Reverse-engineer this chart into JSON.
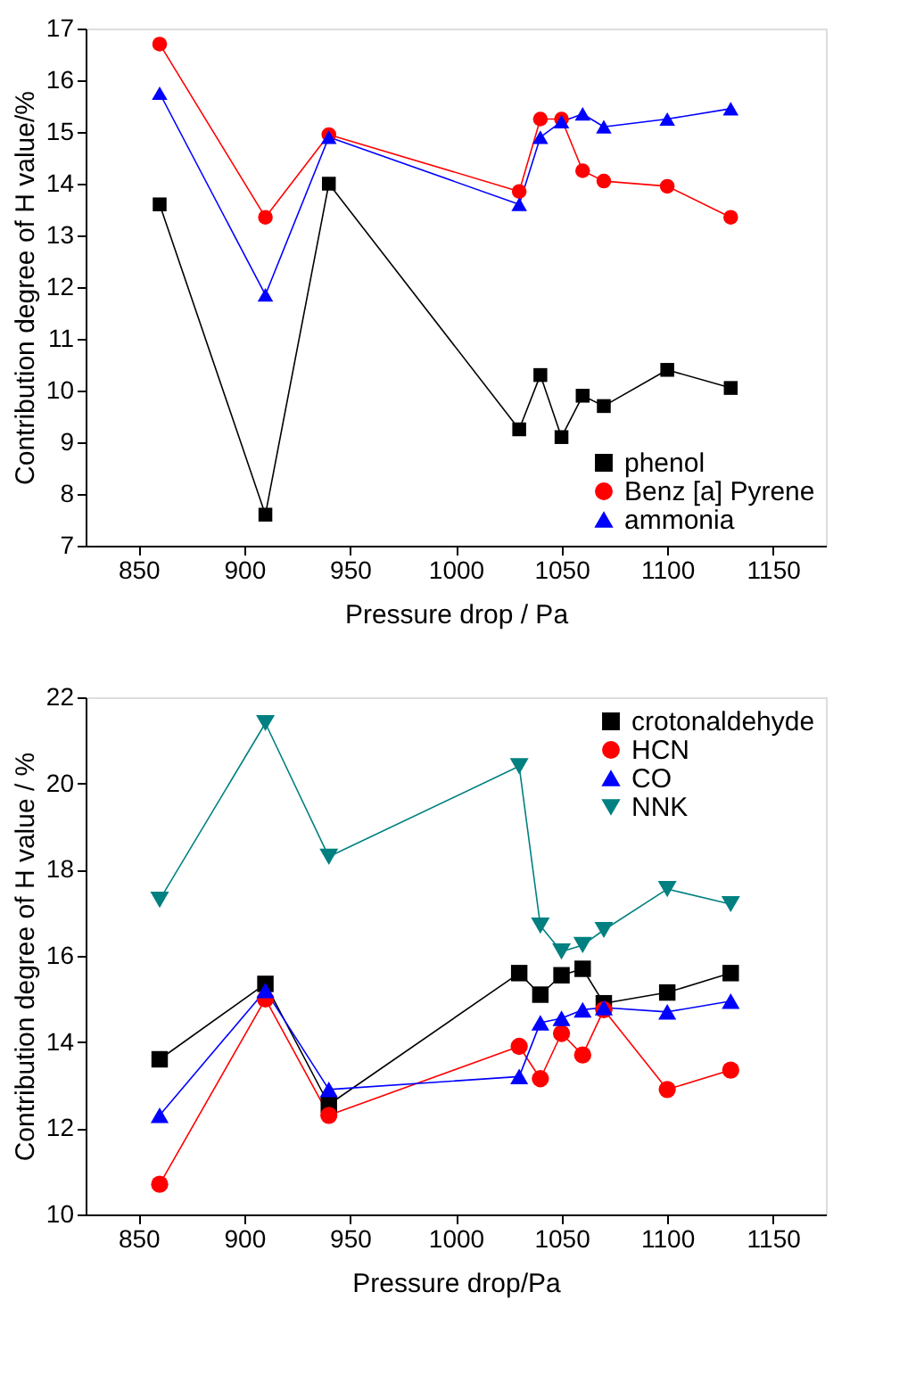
{
  "chart_data": [
    {
      "type": "line",
      "xlabel": "Pressure drop / Pa",
      "ylabel": "Contribution degree of H value/%",
      "x": [
        860,
        910,
        940,
        1030,
        1040,
        1050,
        1060,
        1070,
        1100,
        1130
      ],
      "xlim": [
        825,
        1175
      ],
      "xticks": [
        850,
        900,
        950,
        1000,
        1050,
        1100,
        1150
      ],
      "ylim": [
        7,
        17
      ],
      "yticks": [
        7,
        8,
        9,
        10,
        11,
        12,
        13,
        14,
        15,
        16,
        17
      ],
      "grid": false,
      "legend": "bottom right",
      "line_style": "solid",
      "series": [
        {
          "name": "phenol",
          "color": "#000000",
          "marker": "square",
          "values": [
            13.6,
            7.6,
            14.0,
            9.25,
            10.3,
            9.1,
            9.9,
            9.7,
            10.4,
            10.05
          ]
        },
        {
          "name": "Benz [a] Pyrene",
          "color": "#ff0000",
          "marker": "circle",
          "values": [
            16.7,
            13.35,
            14.95,
            13.85,
            15.25,
            15.25,
            14.25,
            14.05,
            13.95,
            13.35
          ]
        },
        {
          "name": "ammonia",
          "color": "#0000ff",
          "marker": "triangle",
          "values": [
            15.75,
            11.85,
            14.9,
            13.6,
            14.9,
            15.2,
            15.35,
            15.1,
            15.25,
            15.45
          ]
        }
      ]
    },
    {
      "type": "line",
      "xlabel": "Pressure drop/Pa",
      "ylabel": "Contribution degree of H value / %",
      "x": [
        860,
        910,
        940,
        1030,
        1040,
        1050,
        1060,
        1070,
        1100,
        1130
      ],
      "xlim": [
        825,
        1175
      ],
      "xticks": [
        850,
        900,
        950,
        1000,
        1050,
        1100,
        1150
      ],
      "ylim": [
        10,
        22
      ],
      "yticks": [
        10,
        12,
        14,
        16,
        18,
        20,
        22
      ],
      "grid": false,
      "legend": "top right",
      "line_style": "solid",
      "series": [
        {
          "name": "crotonaldehyde",
          "color": "#000000",
          "marker": "square",
          "values": [
            13.6,
            15.35,
            12.55,
            15.6,
            15.1,
            15.55,
            15.7,
            14.9,
            15.15,
            15.6
          ]
        },
        {
          "name": "HCN",
          "color": "#ff0000",
          "marker": "circle",
          "values": [
            10.7,
            15.0,
            12.3,
            13.9,
            13.15,
            14.2,
            13.7,
            14.75,
            12.9,
            13.35
          ]
        },
        {
          "name": "CO",
          "color": "#0000ff",
          "marker": "triangle",
          "values": [
            12.3,
            15.2,
            12.9,
            13.2,
            14.45,
            14.55,
            14.75,
            14.8,
            14.7,
            14.95
          ]
        },
        {
          "name": "NNK",
          "color": "#008080",
          "marker": "triangle-down",
          "values": [
            17.3,
            21.4,
            18.3,
            20.4,
            16.7,
            16.1,
            16.25,
            16.6,
            17.55,
            17.2
          ]
        }
      ]
    }
  ]
}
